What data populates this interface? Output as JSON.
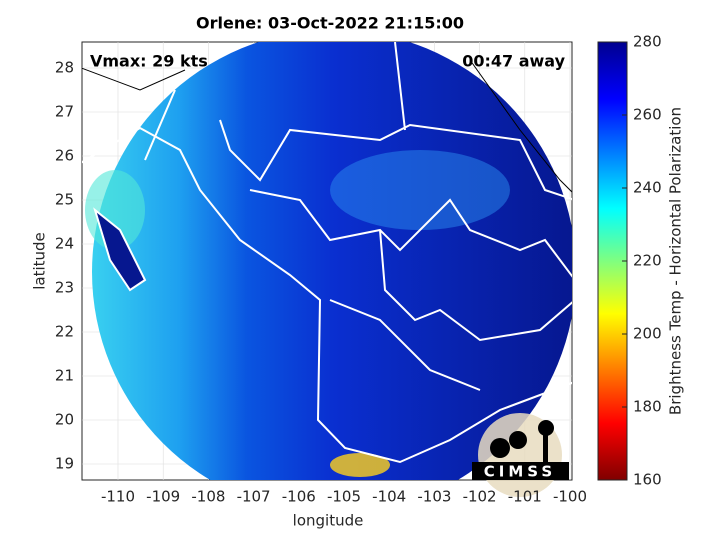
{
  "header": {
    "title": "Orlene: 03-Oct-2022 21:15:00"
  },
  "annotations": {
    "vmax": "Vmax: 29 kts",
    "away": "00:47 away"
  },
  "axes": {
    "x_label": "longitude",
    "y_label": "latitude",
    "x_ticks": [
      -110,
      -109,
      -108,
      -107,
      -106,
      -105,
      -104,
      -103,
      -102,
      -101,
      -100
    ],
    "y_ticks": [
      28,
      27,
      26,
      25,
      24,
      23,
      22,
      21,
      20,
      19
    ]
  },
  "colorbar": {
    "label": "Brightness Temp - Horizontal Polarization",
    "ticks": [
      280,
      260,
      240,
      220,
      200,
      180,
      160
    ]
  },
  "logo": {
    "text": "CIMSS"
  }
}
